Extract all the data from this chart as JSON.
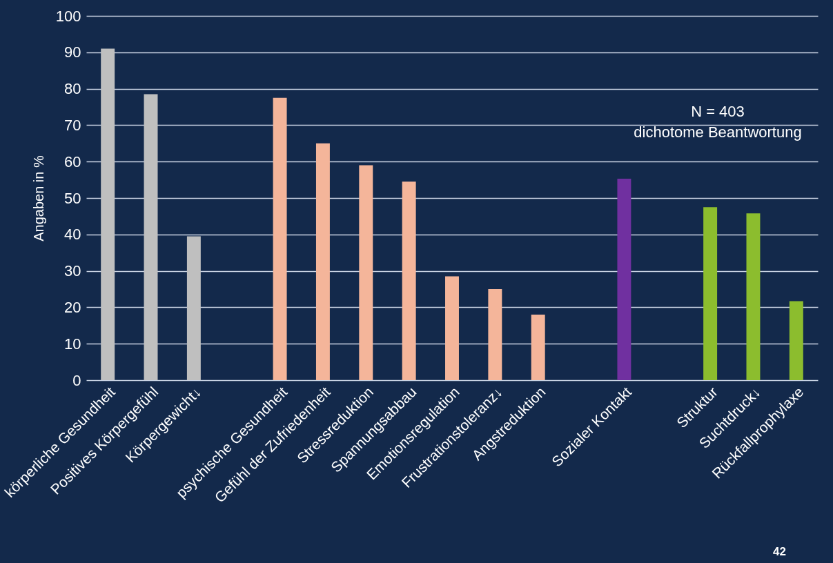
{
  "chart_data": {
    "type": "bar",
    "ylabel": "Angaben in %",
    "categories": [
      "körperliche Gesundheit",
      "Positives Körpergefühl",
      "Körpergewicht↓",
      null,
      "psychische Gesundheit",
      "Gefühl der Zufriedenheit",
      "Stressreduktion",
      "Spannungsabbau",
      "Emotionsregulation",
      "Frustrationstoleranz↓",
      "Angstreduktion",
      null,
      "Sozialer Kontakt",
      null,
      "Struktur",
      "Suchtdruck↓",
      "Rückfallprophylaxe"
    ],
    "values": [
      91,
      78.5,
      39.5,
      null,
      77.5,
      65,
      59,
      54.5,
      28.5,
      25,
      18,
      null,
      55.3,
      null,
      47.5,
      45.8,
      21.7
    ],
    "colors": [
      "#bfbfbf",
      "#bfbfbf",
      "#bfbfbf",
      null,
      "#f4b59a",
      "#f4b59a",
      "#f4b59a",
      "#f4b59a",
      "#f4b59a",
      "#f4b59a",
      "#f4b59a",
      null,
      "#7030a0",
      null,
      "#8cbd2e",
      "#8cbd2e",
      "#8cbd2e"
    ],
    "ylim": [
      0,
      100
    ],
    "yticks": [
      0,
      10,
      20,
      30,
      40,
      50,
      60,
      70,
      80,
      90,
      100
    ],
    "grid": "y",
    "annotations": [
      "N = 403",
      "dichotome Beantwortung",
      "42"
    ]
  }
}
